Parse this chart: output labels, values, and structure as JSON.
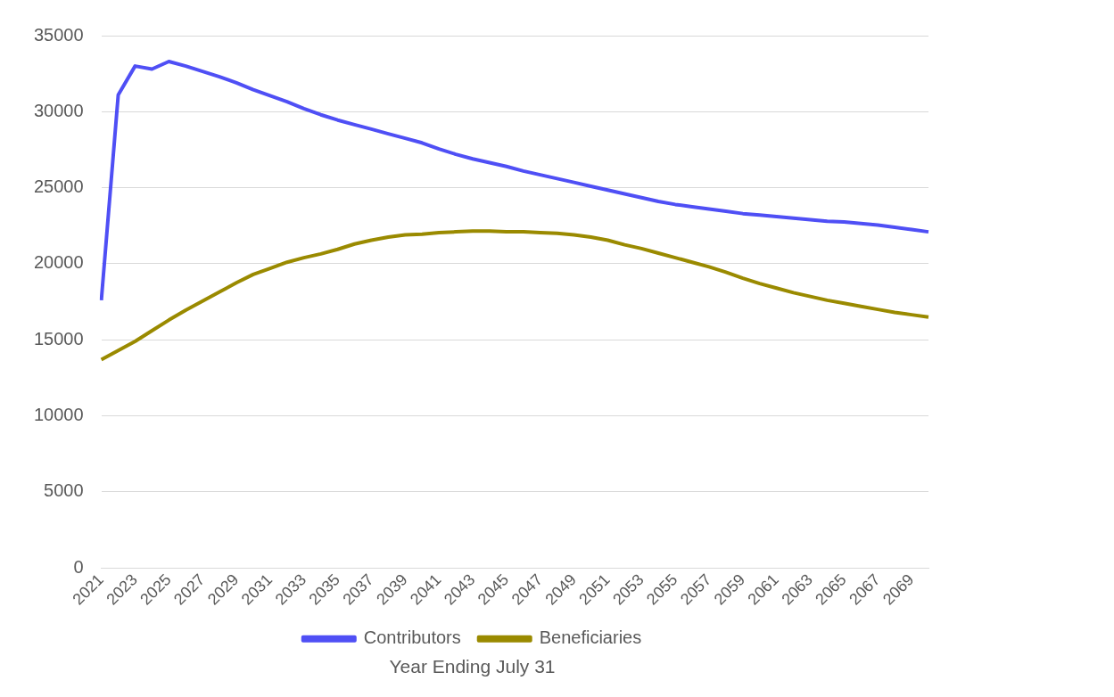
{
  "chart_data": {
    "type": "line",
    "xlabel": "Year Ending July 31",
    "categories": [
      "2021",
      null,
      "2023",
      null,
      "2025",
      null,
      "2027",
      null,
      "2029",
      null,
      "2031",
      null,
      "2033",
      null,
      "2035",
      null,
      "2037",
      null,
      "2039",
      null,
      "2041",
      null,
      "2043",
      null,
      "2045",
      null,
      "2047",
      null,
      "2049",
      null,
      "2051",
      null,
      "2053",
      null,
      "2055",
      null,
      "2057",
      null,
      "2059",
      null,
      "2061",
      null,
      "2063",
      null,
      "2065",
      null,
      "2067",
      null,
      "2069",
      null
    ],
    "series": [
      {
        "name": "Contributors",
        "color": "#4f4ff5",
        "values": [
          17600,
          31100,
          33000,
          32800,
          33300,
          33000,
          32650,
          32300,
          31900,
          31450,
          31050,
          30650,
          30200,
          29800,
          29450,
          29150,
          28850,
          28550,
          28250,
          27950,
          27550,
          27200,
          26900,
          26650,
          26400,
          26100,
          25850,
          25600,
          25350,
          25100,
          24850,
          24600,
          24350,
          24100,
          23900,
          23750,
          23600,
          23450,
          23300,
          23200,
          23100,
          23000,
          22900,
          22800,
          22750,
          22650,
          22550,
          22400,
          22250,
          22100
        ]
      },
      {
        "name": "Beneficiaries",
        "color": "#9a8a00",
        "values": [
          13700,
          14300,
          14900,
          15600,
          16300,
          16950,
          17550,
          18150,
          18750,
          19300,
          19700,
          20100,
          20400,
          20650,
          20950,
          21300,
          21550,
          21750,
          21900,
          21950,
          22050,
          22100,
          22150,
          22150,
          22100,
          22100,
          22050,
          22000,
          21900,
          21750,
          21550,
          21250,
          21000,
          20700,
          20400,
          20100,
          19800,
          19450,
          19050,
          18700,
          18400,
          18100,
          17850,
          17600,
          17400,
          17200,
          17000,
          16800,
          16650,
          16500
        ]
      }
    ],
    "ylim": [
      0,
      35000
    ],
    "yticks": [
      0,
      5000,
      10000,
      15000,
      20000,
      25000,
      30000,
      35000
    ],
    "grid": "y",
    "legend": "bottom",
    "marker": "none",
    "line_style": "solid"
  }
}
